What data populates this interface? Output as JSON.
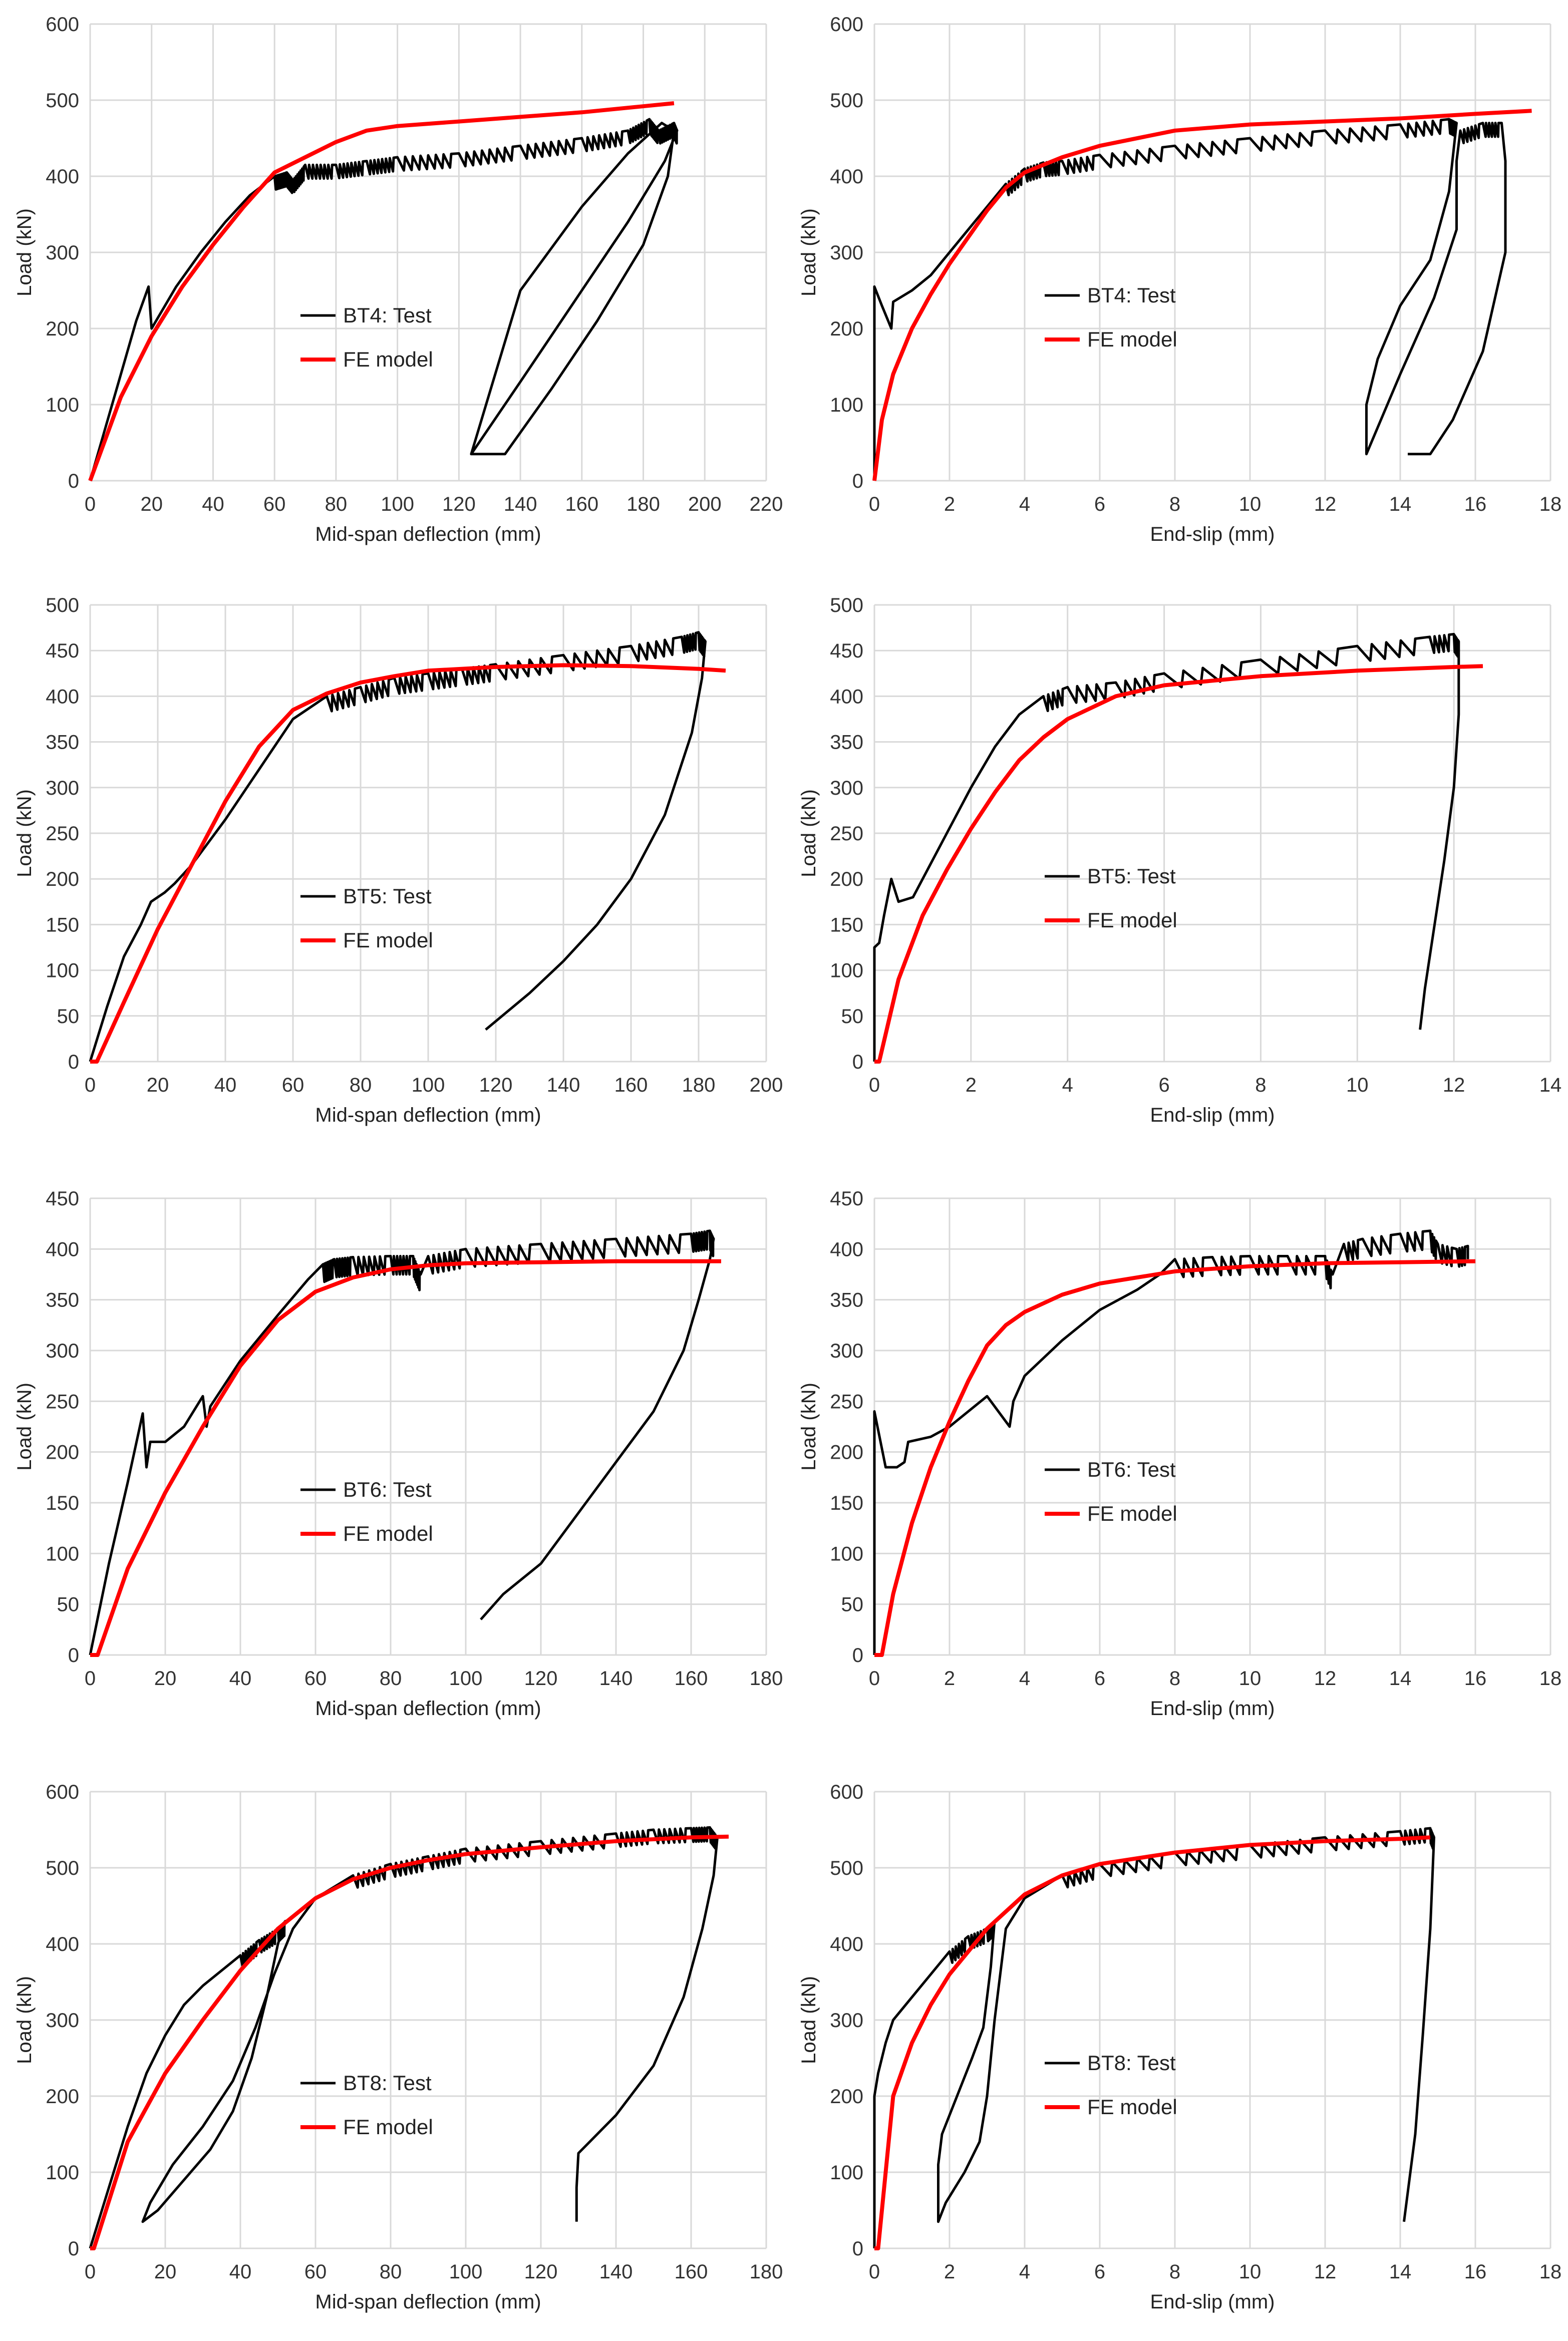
{
  "colors": {
    "test": "#000000",
    "fe": "#ff0000",
    "grid": "#d9d9d9"
  },
  "chart_data": [
    {
      "type": "line",
      "specimen": "BT4",
      "xlabel": "Mid-span deflection (mm)",
      "ylabel": "Load (kN)",
      "xlim": [
        0,
        220
      ],
      "ylim": [
        0,
        600
      ],
      "xstep": 20,
      "ystep": 100,
      "legend": {
        "position": "center-left",
        "test_label": "BT4: Test",
        "fe_label": "FE model"
      },
      "series": [
        {
          "name": "BT4: Test",
          "role": "test",
          "sawtooth": 8,
          "x": [
            0,
            5,
            10,
            15,
            19,
            20,
            28,
            36,
            44,
            52,
            60,
            64,
            66,
            70,
            80,
            90,
            100,
            120,
            140,
            160,
            175,
            182,
            185,
            190,
            191,
            187,
            175,
            160,
            150,
            140,
            124,
            135,
            150,
            165,
            180,
            188,
            190,
            186,
            175,
            160,
            140,
            124
          ],
          "y": [
            0,
            70,
            140,
            210,
            255,
            200,
            255,
            300,
            340,
            375,
            400,
            405,
            395,
            415,
            415,
            420,
            425,
            430,
            440,
            450,
            460,
            475,
            460,
            470,
            460,
            420,
            340,
            250,
            190,
            130,
            35,
            35,
            120,
            210,
            310,
            400,
            460,
            470,
            430,
            360,
            250,
            35
          ]
        },
        {
          "name": "FE model",
          "role": "fe",
          "x": [
            0,
            10,
            20,
            30,
            40,
            50,
            60,
            70,
            80,
            90,
            100,
            120,
            140,
            160,
            180,
            190
          ],
          "y": [
            0,
            110,
            190,
            255,
            310,
            360,
            405,
            425,
            445,
            460,
            466,
            472,
            478,
            484,
            492,
            496
          ]
        }
      ]
    },
    {
      "type": "line",
      "specimen": "BT4",
      "xlabel": "End-slip (mm)",
      "ylabel": "Load (kN)",
      "xlim": [
        0,
        18
      ],
      "ylim": [
        0,
        600
      ],
      "xstep": 2,
      "ystep": 100,
      "legend": {
        "position": "center",
        "test_label": "BT4: Test",
        "fe_label": "FE model"
      },
      "series": [
        {
          "name": "BT4: Test",
          "role": "test",
          "sawtooth": 6,
          "x": [
            0,
            0,
            0.2,
            0.45,
            0.5,
            1,
            1.5,
            2,
            2.5,
            3,
            3.5,
            4,
            4.5,
            5,
            6,
            8,
            10,
            12,
            14,
            15.3,
            15.5,
            15.3,
            14.8,
            14.0,
            13.4,
            13.1,
            13.1,
            14.0,
            14.9,
            15.5,
            15.5,
            15.6,
            16.2,
            16.7,
            16.8,
            16.8,
            16.2,
            15.4,
            14.8,
            14.2
          ],
          "y": [
            0,
            255,
            230,
            200,
            235,
            250,
            270,
            300,
            330,
            360,
            390,
            410,
            418,
            420,
            428,
            440,
            450,
            460,
            468,
            475,
            470,
            380,
            290,
            230,
            160,
            100,
            35,
            140,
            240,
            330,
            420,
            460,
            470,
            470,
            420,
            300,
            170,
            80,
            35,
            35
          ]
        },
        {
          "name": "FE model",
          "role": "fe",
          "x": [
            0,
            0.2,
            0.5,
            1,
            1.5,
            2,
            2.5,
            3,
            3.5,
            4,
            5,
            6,
            8,
            10,
            12,
            14,
            16,
            17.5
          ],
          "y": [
            0,
            80,
            140,
            200,
            245,
            285,
            320,
            355,
            385,
            405,
            425,
            440,
            460,
            468,
            472,
            476,
            482,
            486
          ]
        }
      ]
    },
    {
      "type": "line",
      "specimen": "BT5",
      "xlabel": "Mid-span deflection (mm)",
      "ylabel": "Load (kN)",
      "xlim": [
        0,
        200
      ],
      "ylim": [
        0,
        500
      ],
      "xstep": 20,
      "ystep": 50,
      "legend": {
        "position": "center-left",
        "test_label": "BT5: Test",
        "fe_label": "FE model"
      },
      "series": [
        {
          "name": "BT5: Test",
          "role": "test",
          "sawtooth": 6,
          "x": [
            0,
            5,
            10,
            15,
            18,
            22,
            25,
            30,
            40,
            50,
            60,
            70,
            80,
            90,
            100,
            110,
            120,
            140,
            160,
            175,
            180,
            182,
            181,
            178,
            170,
            160,
            150,
            140,
            130,
            117
          ],
          "y": [
            0,
            60,
            115,
            150,
            175,
            185,
            195,
            215,
            265,
            320,
            375,
            400,
            410,
            420,
            425,
            430,
            435,
            445,
            455,
            465,
            470,
            460,
            420,
            360,
            270,
            200,
            150,
            110,
            75,
            35
          ]
        },
        {
          "name": "FE model",
          "role": "fe",
          "x": [
            0,
            2,
            10,
            20,
            30,
            40,
            50,
            60,
            70,
            80,
            90,
            100,
            120,
            140,
            160,
            180,
            188
          ],
          "y": [
            0,
            0,
            65,
            145,
            215,
            285,
            345,
            385,
            403,
            415,
            422,
            428,
            432,
            434,
            433,
            430,
            428
          ]
        }
      ]
    },
    {
      "type": "line",
      "specimen": "BT5",
      "xlabel": "End-slip (mm)",
      "ylabel": "Load (kN)",
      "xlim": [
        0,
        14
      ],
      "ylim": [
        0,
        500
      ],
      "xstep": 2,
      "ystep": 50,
      "legend": {
        "position": "center",
        "test_label": "BT5: Test",
        "fe_label": "FE model"
      },
      "series": [
        {
          "name": "BT5: Test",
          "role": "test",
          "sawtooth": 5,
          "x": [
            0,
            0,
            0.1,
            0.2,
            0.35,
            0.5,
            0.8,
            1,
            1.5,
            2,
            2.5,
            3,
            3.5,
            4,
            5,
            6,
            8,
            10,
            11.5,
            12.0,
            12.1,
            12.1,
            12.0,
            11.8,
            11.6,
            11.4,
            11.3
          ],
          "y": [
            0,
            125,
            130,
            160,
            200,
            175,
            180,
            200,
            250,
            300,
            345,
            380,
            400,
            410,
            415,
            425,
            440,
            455,
            465,
            468,
            460,
            380,
            300,
            220,
            150,
            80,
            35
          ]
        },
        {
          "name": "FE model",
          "role": "fe",
          "x": [
            0,
            0.1,
            0.5,
            1,
            1.5,
            2,
            2.5,
            3,
            3.5,
            4,
            5,
            6,
            8,
            10,
            12,
            12.6
          ],
          "y": [
            0,
            0,
            90,
            160,
            210,
            255,
            295,
            330,
            355,
            375,
            400,
            412,
            422,
            428,
            432,
            433
          ]
        }
      ]
    },
    {
      "type": "line",
      "specimen": "BT6",
      "xlabel": "Mid-span deflection (mm)",
      "ylabel": "Load (kN)",
      "xlim": [
        0,
        180
      ],
      "ylim": [
        0,
        450
      ],
      "xstep": 20,
      "ystep": 50,
      "legend": {
        "position": "center-left",
        "test_label": "BT6: Test",
        "fe_label": "FE model"
      },
      "series": [
        {
          "name": "BT6: Test",
          "role": "test",
          "sawtooth": 7,
          "x": [
            0,
            5,
            10,
            14,
            15,
            16,
            20,
            25,
            30,
            31,
            32,
            40,
            50,
            58,
            62,
            65,
            70,
            80,
            86,
            88,
            90,
            100,
            120,
            140,
            160,
            165,
            166,
            165,
            162,
            158,
            150,
            140,
            130,
            120,
            110,
            104
          ],
          "y": [
            0,
            90,
            170,
            238,
            185,
            210,
            210,
            225,
            255,
            225,
            245,
            290,
            335,
            370,
            385,
            390,
            392,
            393,
            393,
            375,
            393,
            400,
            405,
            410,
            415,
            418,
            410,
            390,
            350,
            300,
            240,
            190,
            140,
            90,
            60,
            35
          ]
        },
        {
          "name": "FE model",
          "role": "fe",
          "x": [
            0,
            2,
            10,
            20,
            30,
            40,
            50,
            60,
            70,
            80,
            90,
            100,
            120,
            140,
            160,
            168
          ],
          "y": [
            0,
            0,
            85,
            160,
            225,
            285,
            330,
            358,
            372,
            380,
            384,
            386,
            387,
            388,
            388,
            388
          ]
        }
      ]
    },
    {
      "type": "line",
      "specimen": "BT6",
      "xlabel": "End-slip (mm)",
      "ylabel": "Load (kN)",
      "xlim": [
        0,
        18
      ],
      "ylim": [
        0,
        450
      ],
      "xstep": 2,
      "ystep": 50,
      "legend": {
        "position": "center",
        "test_label": "BT6: Test",
        "fe_label": "FE model"
      },
      "series": [
        {
          "name": "BT6: Test",
          "role": "test",
          "sawtooth": 4,
          "x": [
            0,
            0,
            0.3,
            0.6,
            0.8,
            0.9,
            1.5,
            2,
            3,
            3.3,
            3.6,
            3.7,
            4,
            5,
            6,
            7,
            7.6,
            8,
            9,
            10,
            11,
            12,
            12.2,
            12.5,
            13,
            14,
            14.8,
            15,
            15.5,
            15.8,
            15.8
          ],
          "y": [
            0,
            240,
            185,
            185,
            190,
            210,
            215,
            225,
            255,
            240,
            225,
            250,
            275,
            310,
            340,
            360,
            375,
            390,
            392,
            393,
            393,
            393,
            375,
            405,
            410,
            415,
            418,
            405,
            400,
            403,
            390
          ]
        },
        {
          "name": "FE model",
          "role": "fe",
          "x": [
            0,
            0.2,
            0.5,
            1,
            1.5,
            2,
            2.5,
            3,
            3.5,
            4,
            5,
            6,
            8,
            10,
            12,
            14,
            16
          ],
          "y": [
            0,
            0,
            60,
            130,
            185,
            230,
            270,
            305,
            325,
            338,
            355,
            366,
            378,
            383,
            386,
            387,
            388
          ]
        }
      ]
    },
    {
      "type": "line",
      "specimen": "BT8",
      "xlabel": "Mid-span deflection (mm)",
      "ylabel": "Load (kN)",
      "xlim": [
        0,
        180
      ],
      "ylim": [
        0,
        600
      ],
      "xstep": 20,
      "ystep": 100,
      "legend": {
        "position": "center-left",
        "test_label": "BT8: Test",
        "fe_label": "FE model"
      },
      "series": [
        {
          "name": "BT8: Test",
          "role": "test",
          "sawtooth": 7,
          "x": [
            0,
            5,
            10,
            15,
            20,
            25,
            30,
            35,
            40,
            45,
            50,
            52,
            50,
            47,
            43,
            38,
            32,
            25,
            18,
            14,
            16,
            22,
            30,
            38,
            44,
            49,
            54,
            60,
            70,
            80,
            90,
            100,
            120,
            140,
            150,
            160,
            165,
            167,
            166,
            163,
            158,
            150,
            140,
            133,
            130,
            129.5,
            129.5
          ],
          "y": [
            0,
            80,
            160,
            230,
            280,
            320,
            345,
            365,
            385,
            405,
            420,
            430,
            400,
            330,
            250,
            180,
            130,
            90,
            50,
            35,
            60,
            110,
            160,
            220,
            290,
            360,
            420,
            460,
            490,
            505,
            515,
            525,
            535,
            545,
            550,
            552,
            553,
            540,
            490,
            420,
            330,
            240,
            175,
            140,
            125,
            80,
            35
          ]
        },
        {
          "name": "FE model",
          "role": "fe",
          "x": [
            0,
            1,
            10,
            20,
            30,
            40,
            50,
            60,
            70,
            80,
            90,
            100,
            120,
            140,
            160,
            170
          ],
          "y": [
            0,
            0,
            140,
            230,
            300,
            365,
            420,
            460,
            485,
            500,
            510,
            518,
            527,
            535,
            540,
            541
          ]
        }
      ]
    },
    {
      "type": "line",
      "specimen": "BT8",
      "xlabel": "End-slip (mm)",
      "ylabel": "Load (kN)",
      "xlim": [
        0,
        18
      ],
      "ylim": [
        0,
        600
      ],
      "xstep": 2,
      "ystep": 100,
      "legend": {
        "position": "center",
        "test_label": "BT8: Test",
        "fe_label": "FE model"
      },
      "series": [
        {
          "name": "BT8: Test",
          "role": "test",
          "sawtooth": 6,
          "x": [
            0,
            0,
            0.1,
            0.3,
            0.5,
            1,
            1.5,
            2,
            2.5,
            3,
            3.2,
            3.1,
            2.9,
            2.6,
            2.2,
            1.8,
            1.7,
            1.7,
            1.7,
            1.9,
            2.4,
            2.8,
            3.0,
            3.2,
            3.5,
            4,
            5,
            6,
            8,
            10,
            12,
            14,
            14.8,
            14.9,
            14.8,
            14.6,
            14.4,
            14.1
          ],
          "y": [
            0,
            200,
            230,
            270,
            300,
            330,
            360,
            390,
            410,
            420,
            430,
            370,
            290,
            250,
            200,
            150,
            110,
            70,
            35,
            60,
            100,
            140,
            200,
            300,
            420,
            460,
            490,
            505,
            520,
            530,
            540,
            548,
            552,
            540,
            420,
            280,
            150,
            35
          ]
        },
        {
          "name": "FE model",
          "role": "fe",
          "x": [
            0,
            0.1,
            0.5,
            1,
            1.5,
            2,
            3,
            4,
            5,
            6,
            8,
            10,
            12,
            14,
            14.8
          ],
          "y": [
            0,
            0,
            200,
            270,
            320,
            360,
            420,
            465,
            490,
            505,
            520,
            530,
            535,
            538,
            540
          ]
        }
      ]
    }
  ]
}
